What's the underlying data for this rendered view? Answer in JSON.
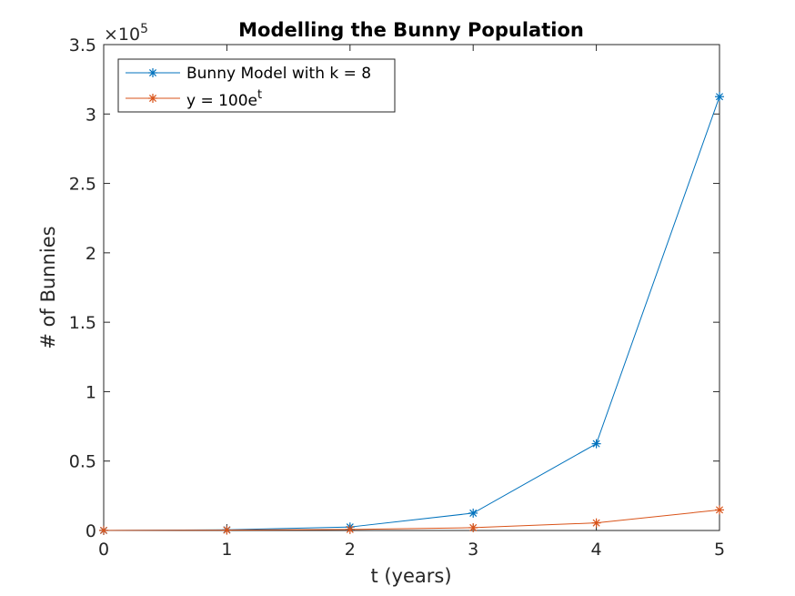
{
  "chart_data": {
    "type": "line",
    "title": "Modelling the Bunny Population",
    "xlabel": "t (years)",
    "ylabel": "# of Bunnies",
    "xlim": [
      0,
      5
    ],
    "ylim": [
      0,
      350000
    ],
    "x_ticks": [
      "0",
      "1",
      "2",
      "3",
      "4",
      "5"
    ],
    "y_ticks": [
      "0",
      "0.5",
      "1",
      "1.5",
      "2",
      "2.5",
      "3",
      "3.5"
    ],
    "y_exponent_base": "×10",
    "y_exponent_power": "5",
    "grid": false,
    "legend_position": "top-left",
    "x": [
      0,
      1,
      2,
      3,
      4,
      5
    ],
    "series": [
      {
        "name": "Bunny Model with k = 8",
        "values": [
          0,
          500,
          2500,
          12500,
          62500,
          312500
        ],
        "color": "#0072BD",
        "marker": "asterisk"
      },
      {
        "name_base": "y = 100e",
        "name_superscript": "t",
        "values": [
          100,
          272,
          739,
          2009,
          5460,
          14841
        ],
        "color": "#D95319",
        "marker": "asterisk"
      }
    ]
  }
}
